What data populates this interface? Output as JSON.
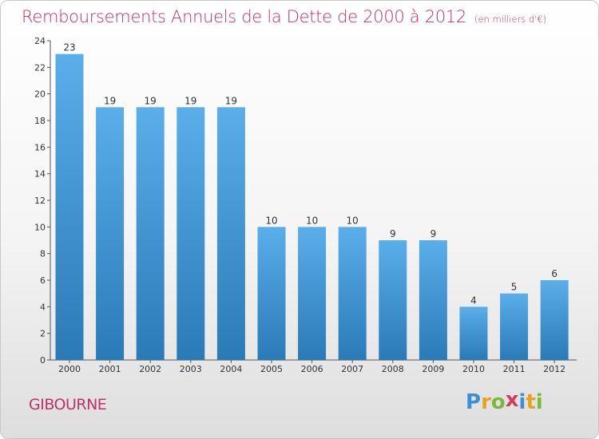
{
  "title": "Remboursements Annuels de la Dette de 2000 à 2012",
  "unit_note": "(en milliers d'€)",
  "commune": "GIBOURNE",
  "logo": {
    "letters": [
      "P",
      "r",
      "o",
      "x",
      "i",
      "t",
      "i"
    ],
    "colors": [
      "#3b8fd6",
      "#e8a21d",
      "#7bb93a",
      "#d63b5a",
      "#3b8fd6",
      "#e8a21d",
      "#7bb93a"
    ]
  },
  "colors": {
    "bar_top": "#5aaee9",
    "bar_bottom": "#2a7ab8",
    "title": "#c0306a"
  },
  "chart_data": {
    "type": "bar",
    "categories": [
      "2000",
      "2001",
      "2002",
      "2003",
      "2004",
      "2005",
      "2006",
      "2007",
      "2008",
      "2009",
      "2010",
      "2011",
      "2012"
    ],
    "values": [
      23,
      19,
      19,
      19,
      19,
      10,
      10,
      10,
      9,
      9,
      4,
      5,
      6
    ],
    "ylim": [
      0,
      24
    ],
    "yticks": [
      0,
      2,
      4,
      6,
      8,
      10,
      12,
      14,
      16,
      18,
      20,
      22,
      24
    ],
    "grid": false,
    "legend": "none"
  }
}
